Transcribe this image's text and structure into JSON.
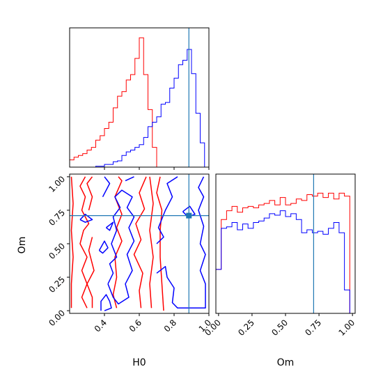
{
  "chart_data": {
    "type": "corner",
    "truth_color": "#1f77b4",
    "series_colors": [
      "#ff0000",
      "#0000ff"
    ],
    "parameters": [
      {
        "label": "H0",
        "range": [
          0.2,
          1.0
        ],
        "ticks": [
          "0.4",
          "0.6",
          "0.8",
          "1.0"
        ],
        "tick_values": [
          0.4,
          0.6,
          0.8,
          1.0
        ],
        "truth": 0.885
      },
      {
        "label": "Om",
        "range": [
          -0.02,
          1.02
        ],
        "ticks": [
          "0.00",
          "0.25",
          "0.50",
          "0.75",
          "1.00"
        ],
        "tick_values": [
          0.0,
          0.25,
          0.5,
          0.75,
          1.0
        ],
        "truth": 0.71
      }
    ],
    "hist_H0": {
      "bin_edges": [
        0.2,
        0.225,
        0.25,
        0.275,
        0.3,
        0.325,
        0.35,
        0.375,
        0.4,
        0.425,
        0.45,
        0.475,
        0.5,
        0.525,
        0.55,
        0.575,
        0.6,
        0.625,
        0.65,
        0.675,
        0.7,
        0.725,
        0.75,
        0.775,
        0.8,
        0.825,
        0.85,
        0.875,
        0.9,
        0.925,
        0.95,
        0.975,
        1.0
      ],
      "series": [
        {
          "values": [
            8,
            11,
            13,
            15,
            19,
            22,
            30,
            35,
            43,
            50,
            66,
            79,
            84,
            97,
            103,
            121,
            144,
            103,
            64,
            22,
            0,
            0,
            0,
            0,
            0,
            0,
            0,
            0,
            0,
            0,
            0,
            0
          ]
        },
        {
          "values": [
            0,
            0,
            0,
            0,
            0,
            0,
            1,
            1,
            3,
            3,
            6,
            7,
            13,
            17,
            19,
            22,
            25,
            33,
            45,
            50,
            56,
            70,
            72,
            88,
            99,
            114,
            119,
            131,
            104,
            60,
            27,
            0
          ]
        }
      ],
      "ylim": [
        0,
        155
      ]
    },
    "hist_Om": {
      "bin_edges": [
        -0.02,
        0.02,
        0.06,
        0.1,
        0.14,
        0.18,
        0.22,
        0.26,
        0.3,
        0.34,
        0.38,
        0.42,
        0.46,
        0.5,
        0.54,
        0.58,
        0.62,
        0.66,
        0.7,
        0.74,
        0.78,
        0.82,
        0.86,
        0.9,
        0.94,
        0.98,
        1.02
      ],
      "series": [
        {
          "values": [
            30,
            64,
            70,
            73,
            69,
            72,
            73,
            72,
            74,
            75,
            77,
            74,
            79,
            74,
            75,
            78,
            77,
            81,
            80,
            82,
            79,
            82,
            78,
            82,
            80,
            0
          ]
        },
        {
          "values": [
            30,
            58,
            59,
            62,
            57,
            61,
            58,
            62,
            63,
            65,
            68,
            67,
            70,
            66,
            68,
            64,
            55,
            57,
            55,
            56,
            54,
            58,
            62,
            55,
            16,
            0
          ]
        }
      ],
      "ylim": [
        0,
        95
      ]
    },
    "contours": [
      {
        "series": 0,
        "paths": [
          [
            [
              0.21,
              0.02
            ],
            [
              0.21,
              0.2
            ],
            [
              0.22,
              0.4
            ],
            [
              0.21,
              0.6
            ],
            [
              0.22,
              0.8
            ],
            [
              0.21,
              1.0
            ]
          ],
          [
            [
              0.3,
              0.02
            ],
            [
              0.27,
              0.1
            ],
            [
              0.3,
              0.2
            ],
            [
              0.27,
              0.3
            ],
            [
              0.3,
              0.4
            ],
            [
              0.26,
              0.5
            ],
            [
              0.28,
              0.6
            ],
            [
              0.31,
              0.65
            ],
            [
              0.27,
              0.75
            ],
            [
              0.29,
              0.85
            ],
            [
              0.26,
              0.93
            ],
            [
              0.29,
              1.0
            ]
          ],
          [
            [
              0.33,
              0.02
            ],
            [
              0.33,
              0.1
            ],
            [
              0.3,
              0.2
            ],
            [
              0.34,
              0.3
            ],
            [
              0.31,
              0.45
            ],
            [
              0.33,
              0.55
            ]
          ],
          [
            [
              0.31,
              0.75
            ],
            [
              0.33,
              0.85
            ],
            [
              0.3,
              0.95
            ],
            [
              0.33,
              1.0
            ]
          ],
          [
            [
              0.47,
              0.02
            ],
            [
              0.45,
              0.12
            ],
            [
              0.47,
              0.25
            ],
            [
              0.46,
              0.4
            ],
            [
              0.5,
              0.52
            ],
            [
              0.47,
              0.62
            ],
            [
              0.5,
              0.72
            ],
            [
              0.46,
              0.85
            ],
            [
              0.5,
              0.97
            ],
            [
              0.48,
              1.0
            ]
          ],
          [
            [
              0.61,
              0.02
            ],
            [
              0.6,
              0.15
            ],
            [
              0.62,
              0.28
            ],
            [
              0.57,
              0.42
            ],
            [
              0.61,
              0.53
            ],
            [
              0.58,
              0.65
            ],
            [
              0.63,
              0.76
            ],
            [
              0.6,
              0.88
            ],
            [
              0.64,
              1.0
            ]
          ],
          [
            [
              0.67,
              0.02
            ],
            [
              0.66,
              0.2
            ],
            [
              0.68,
              0.4
            ],
            [
              0.66,
              0.6
            ],
            [
              0.68,
              0.8
            ],
            [
              0.66,
              1.0
            ]
          ],
          [
            [
              0.74,
              0.0
            ],
            [
              0.73,
              0.2
            ],
            [
              0.72,
              0.4
            ],
            [
              0.72,
              0.6
            ],
            [
              0.73,
              0.75
            ],
            [
              0.7,
              0.88
            ],
            [
              0.72,
              1.0
            ]
          ]
        ]
      },
      {
        "series": 1,
        "paths": [
          [
            [
              0.38,
              0.0
            ],
            [
              0.38,
              0.07
            ],
            [
              0.41,
              0.12
            ],
            [
              0.43,
              0.07
            ],
            [
              0.44,
              0.02
            ],
            [
              0.4,
              0.0
            ]
          ],
          [
            [
              0.42,
              0.2
            ],
            [
              0.45,
              0.28
            ],
            [
              0.43,
              0.35
            ],
            [
              0.47,
              0.4
            ],
            [
              0.44,
              0.5
            ],
            [
              0.47,
              0.6
            ],
            [
              0.45,
              0.7
            ],
            [
              0.49,
              0.77
            ],
            [
              0.46,
              0.85
            ],
            [
              0.5,
              0.9
            ],
            [
              0.56,
              0.85
            ],
            [
              0.53,
              0.77
            ],
            [
              0.57,
              0.7
            ],
            [
              0.54,
              0.62
            ],
            [
              0.57,
              0.52
            ],
            [
              0.53,
              0.42
            ],
            [
              0.56,
              0.3
            ],
            [
              0.52,
              0.2
            ],
            [
              0.54,
              0.1
            ],
            [
              0.48,
              0.05
            ],
            [
              0.45,
              0.1
            ],
            [
              0.42,
              0.2
            ]
          ],
          [
            [
              0.37,
              0.45
            ],
            [
              0.4,
              0.52
            ],
            [
              0.42,
              0.47
            ],
            [
              0.39,
              0.43
            ],
            [
              0.37,
              0.45
            ]
          ],
          [
            [
              0.41,
              0.62
            ],
            [
              0.45,
              0.66
            ],
            [
              0.43,
              0.6
            ],
            [
              0.41,
              0.62
            ]
          ],
          [
            [
              0.26,
              0.68
            ],
            [
              0.29,
              0.72
            ],
            [
              0.33,
              0.68
            ],
            [
              0.29,
              0.66
            ],
            [
              0.26,
              0.68
            ]
          ],
          [
            [
              0.39,
              0.85
            ],
            [
              0.43,
              0.95
            ],
            [
              0.4,
              1.0
            ]
          ],
          [
            [
              0.52,
              0.97
            ],
            [
              0.57,
              1.0
            ]
          ],
          [
            [
              0.7,
              0.5
            ],
            [
              0.74,
              0.55
            ],
            [
              0.71,
              0.62
            ],
            [
              0.75,
              0.75
            ],
            [
              0.79,
              0.85
            ],
            [
              0.76,
              0.95
            ],
            [
              0.82,
              1.0
            ]
          ],
          [
            [
              0.7,
              0.28
            ],
            [
              0.75,
              0.33
            ],
            [
              0.76,
              0.25
            ],
            [
              0.8,
              0.17
            ],
            [
              0.79,
              0.06
            ],
            [
              0.82,
              0.02
            ],
            [
              0.98,
              0.02
            ],
            [
              0.98,
              0.2
            ],
            [
              0.95,
              0.3
            ],
            [
              0.98,
              0.42
            ],
            [
              0.95,
              0.5
            ],
            [
              0.97,
              0.63
            ],
            [
              0.94,
              0.75
            ],
            [
              0.97,
              0.85
            ],
            [
              0.94,
              0.92
            ],
            [
              0.97,
              1.0
            ]
          ],
          [
            [
              0.85,
              0.74
            ],
            [
              0.88,
              0.7
            ],
            [
              0.92,
              0.72
            ],
            [
              0.89,
              0.78
            ],
            [
              0.85,
              0.74
            ]
          ]
        ]
      }
    ]
  }
}
